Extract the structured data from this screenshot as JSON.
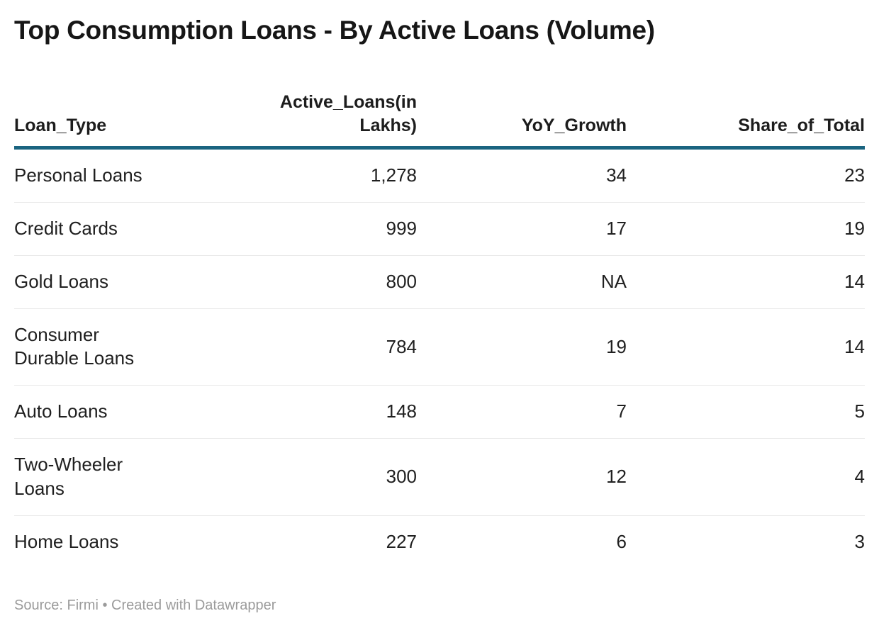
{
  "title": "Top Consumption Loans - By Active Loans (Volume)",
  "table": {
    "columns": [
      {
        "label": "Loan_Type",
        "align": "left"
      },
      {
        "label": "Active_Loans(in\nLakhs)",
        "align": "right"
      },
      {
        "label": "YoY_Growth",
        "align": "right"
      },
      {
        "label": "Share_of_Total",
        "align": "right"
      }
    ],
    "rows": [
      {
        "cells": [
          "Personal Loans",
          "1,278",
          "34",
          "23"
        ]
      },
      {
        "cells": [
          "Credit Cards",
          "999",
          "17",
          "19"
        ]
      },
      {
        "cells": [
          "Gold Loans",
          "800",
          "NA",
          "14"
        ]
      },
      {
        "cells": [
          "Consumer\nDurable Loans",
          "784",
          "19",
          "14"
        ]
      },
      {
        "cells": [
          "Auto Loans",
          "148",
          "7",
          "5"
        ]
      },
      {
        "cells": [
          "Two-Wheeler\nLoans",
          "300",
          "12",
          "4"
        ]
      },
      {
        "cells": [
          "Home Loans",
          "227",
          "6",
          "3"
        ]
      }
    ]
  },
  "footer": {
    "text": "Source: Firmi • Created with Datawrapper"
  },
  "colors": {
    "header_rule": "#1a6480",
    "row_divider": "#e9e9e9",
    "footer_text": "#9b9b9b",
    "title_text": "#161616"
  },
  "chart_data": {
    "type": "table",
    "title": "Top Consumption Loans - By Active Loans (Volume)",
    "columns": [
      "Loan_Type",
      "Active_Loans(in Lakhs)",
      "YoY_Growth",
      "Share_of_Total"
    ],
    "rows": [
      [
        "Personal Loans",
        1278,
        34,
        23
      ],
      [
        "Credit Cards",
        999,
        17,
        19
      ],
      [
        "Gold Loans",
        800,
        "NA",
        14
      ],
      [
        "Consumer Durable Loans",
        784,
        19,
        14
      ],
      [
        "Auto Loans",
        148,
        7,
        5
      ],
      [
        "Two-Wheeler Loans",
        300,
        12,
        4
      ],
      [
        "Home Loans",
        227,
        6,
        3
      ]
    ],
    "source": "Firmi",
    "attribution": "Created with Datawrapper"
  }
}
